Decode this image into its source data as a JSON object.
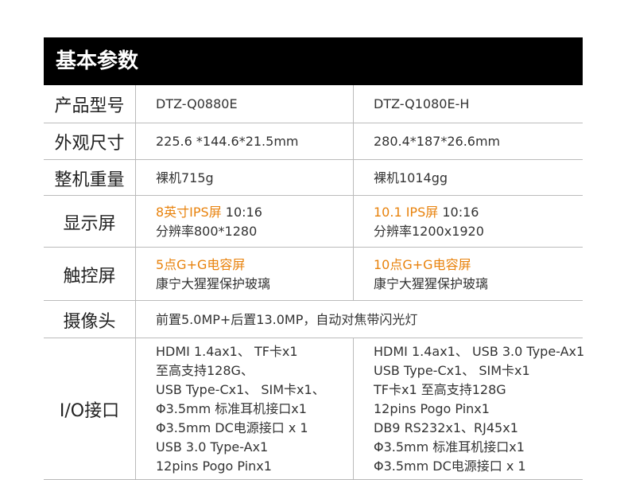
{
  "header": {
    "title": "基本参数"
  },
  "table": {
    "rows": [
      {
        "label": "产品型号",
        "cells": [
          {
            "lines": [
              {
                "text": "DTZ-Q0880E"
              }
            ]
          },
          {
            "lines": [
              {
                "text": "DTZ-Q1080E-H"
              }
            ]
          }
        ]
      },
      {
        "label": "外观尺寸",
        "cells": [
          {
            "lines": [
              {
                "text": "225.6 *144.6*21.5mm"
              }
            ]
          },
          {
            "lines": [
              {
                "text": "280.4*187*26.6mm"
              }
            ]
          }
        ]
      },
      {
        "label": "整机重量",
        "cells": [
          {
            "lines": [
              {
                "text": "裸机715g"
              }
            ]
          },
          {
            "lines": [
              {
                "text": "裸机1014gg"
              }
            ]
          }
        ]
      },
      {
        "label": "显示屏",
        "cells": [
          {
            "lines": [
              {
                "accent": "8英寸IPS屏",
                "text": " 10:16"
              },
              {
                "text": "分辨率800*1280"
              }
            ]
          },
          {
            "lines": [
              {
                "accent": "10.1 IPS屏",
                "text": " 10:16"
              },
              {
                "text": "分辨率1200x1920"
              }
            ]
          }
        ]
      },
      {
        "label": "触控屏",
        "cells": [
          {
            "lines": [
              {
                "accent": "5点G+G电容屏"
              },
              {
                "text": "康宁大猩猩保护玻璃"
              }
            ]
          },
          {
            "lines": [
              {
                "accent": "10点G+G电容屏"
              },
              {
                "text": "康宁大猩猩保护玻璃"
              }
            ]
          }
        ]
      },
      {
        "label": "摄像头",
        "cells": [
          {
            "lines": [
              {
                "text": "前置5.0MP+后置13.0MP，自动对焦带闪光灯"
              }
            ]
          }
        ]
      },
      {
        "label": "I/O接口",
        "cells": [
          {
            "lines": [
              {
                "text": "HDMI 1.4ax1、 TF卡x1"
              },
              {
                "text": "至高支持128G、"
              },
              {
                "text": "USB Type-Cx1、 SIM卡x1、"
              },
              {
                "text": "Φ3.5mm 标准耳机接口x1"
              },
              {
                "text": "Φ3.5mm DC电源接口 x 1"
              },
              {
                "text": "USB 3.0 Type-Ax1"
              },
              {
                "text": "12pins Pogo Pinx1"
              }
            ]
          },
          {
            "lines": [
              {
                "text": "HDMI 1.4ax1、 USB 3.0 Type-Ax1"
              },
              {
                "text": "USB Type-Cx1、 SIM卡x1"
              },
              {
                "text": "TF卡x1 至高支持128G"
              },
              {
                "text": "12pins Pogo Pinx1"
              },
              {
                "text": "DB9 RS232x1、RJ45x1"
              },
              {
                "text": "Φ3.5mm 标准耳机接口x1"
              },
              {
                "text": "Φ3.5mm DC电源接口 x 1"
              }
            ]
          }
        ]
      }
    ]
  }
}
